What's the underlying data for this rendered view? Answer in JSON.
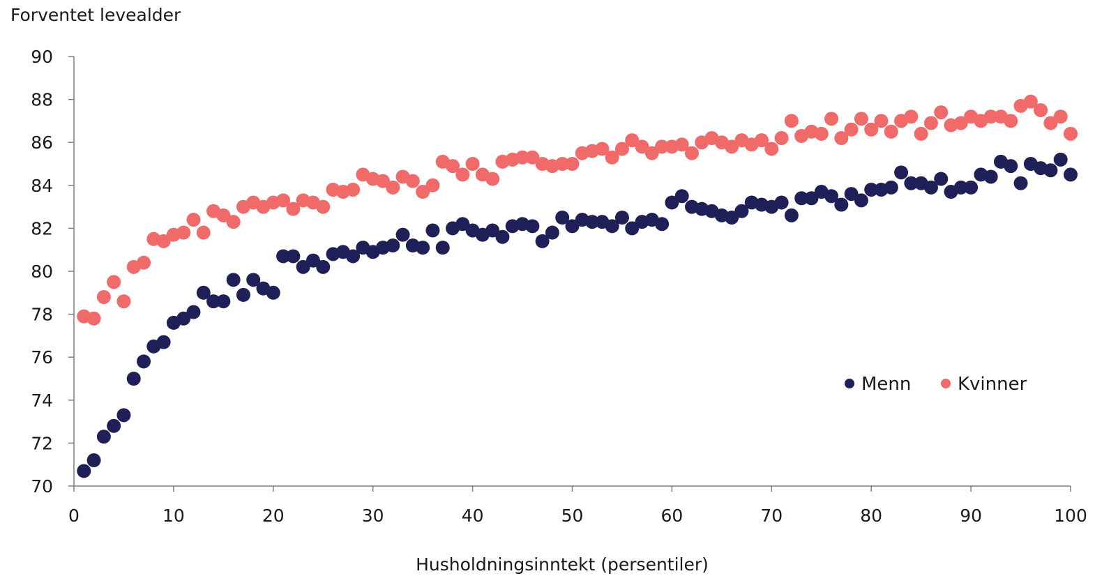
{
  "chart_data": {
    "type": "scatter",
    "ylabel": "Forventet levealder",
    "xlabel": "Husholdningsinntekt (persentiler)",
    "xlim": [
      0,
      100
    ],
    "ylim": [
      70,
      90
    ],
    "x_ticks": [
      "0",
      "10",
      "20",
      "30",
      "40",
      "50",
      "60",
      "70",
      "80",
      "90",
      "100"
    ],
    "y_ticks": [
      "70",
      "72",
      "74",
      "76",
      "78",
      "80",
      "82",
      "84",
      "86",
      "88",
      "90"
    ],
    "legend_position": "bottom-right",
    "x": [
      1,
      2,
      3,
      4,
      5,
      6,
      7,
      8,
      9,
      10,
      11,
      12,
      13,
      14,
      15,
      16,
      17,
      18,
      19,
      20,
      21,
      22,
      23,
      24,
      25,
      26,
      27,
      28,
      29,
      30,
      31,
      32,
      33,
      34,
      35,
      36,
      37,
      38,
      39,
      40,
      41,
      42,
      43,
      44,
      45,
      46,
      47,
      48,
      49,
      50,
      51,
      52,
      53,
      54,
      55,
      56,
      57,
      58,
      59,
      60,
      61,
      62,
      63,
      64,
      65,
      66,
      67,
      68,
      69,
      70,
      71,
      72,
      73,
      74,
      75,
      76,
      77,
      78,
      79,
      80,
      81,
      82,
      83,
      84,
      85,
      86,
      87,
      88,
      89,
      90,
      91,
      92,
      93,
      94,
      95,
      96,
      97,
      98,
      99,
      100
    ],
    "series": [
      {
        "name": "Menn",
        "color": "#1f2058",
        "values": [
          70.7,
          71.2,
          72.3,
          72.8,
          73.3,
          75.0,
          75.8,
          76.5,
          76.7,
          77.6,
          77.8,
          78.1,
          79.0,
          78.6,
          78.6,
          79.6,
          78.9,
          79.6,
          79.2,
          79.0,
          80.7,
          80.7,
          80.2,
          80.5,
          80.2,
          80.8,
          80.9,
          80.7,
          81.1,
          80.9,
          81.1,
          81.2,
          81.7,
          81.2,
          81.1,
          81.9,
          81.1,
          82.0,
          82.2,
          81.9,
          81.7,
          81.9,
          81.6,
          82.1,
          82.2,
          82.1,
          81.4,
          81.8,
          82.5,
          82.1,
          82.4,
          82.3,
          82.3,
          82.1,
          82.5,
          82.0,
          82.3,
          82.4,
          82.2,
          83.2,
          83.5,
          83.0,
          82.9,
          82.8,
          82.6,
          82.5,
          82.8,
          83.2,
          83.1,
          83.0,
          83.2,
          82.6,
          83.4,
          83.4,
          83.7,
          83.5,
          83.1,
          83.6,
          83.3,
          83.8,
          83.8,
          83.9,
          84.6,
          84.1,
          84.1,
          83.9,
          84.3,
          83.7,
          83.9,
          83.9,
          84.5,
          84.4,
          85.1,
          84.9,
          84.1,
          85.0,
          84.8,
          84.7,
          85.2,
          84.5
        ]
      },
      {
        "name": "Kvinner",
        "color": "#f06a6a",
        "values": [
          77.9,
          77.8,
          78.8,
          79.5,
          78.6,
          80.2,
          80.4,
          81.5,
          81.4,
          81.7,
          81.8,
          82.4,
          81.8,
          82.8,
          82.6,
          82.3,
          83.0,
          83.2,
          83.0,
          83.2,
          83.3,
          82.9,
          83.3,
          83.2,
          83.0,
          83.8,
          83.7,
          83.8,
          84.5,
          84.3,
          84.2,
          83.9,
          84.4,
          84.2,
          83.7,
          84.0,
          85.1,
          84.9,
          84.5,
          85.0,
          84.5,
          84.3,
          85.1,
          85.2,
          85.3,
          85.3,
          85.0,
          84.9,
          85.0,
          85.0,
          85.5,
          85.6,
          85.7,
          85.3,
          85.7,
          86.1,
          85.8,
          85.5,
          85.8,
          85.8,
          85.9,
          85.5,
          86.0,
          86.2,
          86.0,
          85.8,
          86.1,
          85.9,
          86.1,
          85.7,
          86.2,
          87.0,
          86.3,
          86.5,
          86.4,
          87.1,
          86.2,
          86.6,
          87.1,
          86.6,
          87.0,
          86.5,
          87.0,
          87.2,
          86.4,
          86.9,
          87.4,
          86.8,
          86.9,
          87.2,
          87.0,
          87.2,
          87.2,
          87.0,
          87.7,
          87.9,
          87.5,
          86.9,
          87.2,
          86.4
        ]
      }
    ]
  }
}
